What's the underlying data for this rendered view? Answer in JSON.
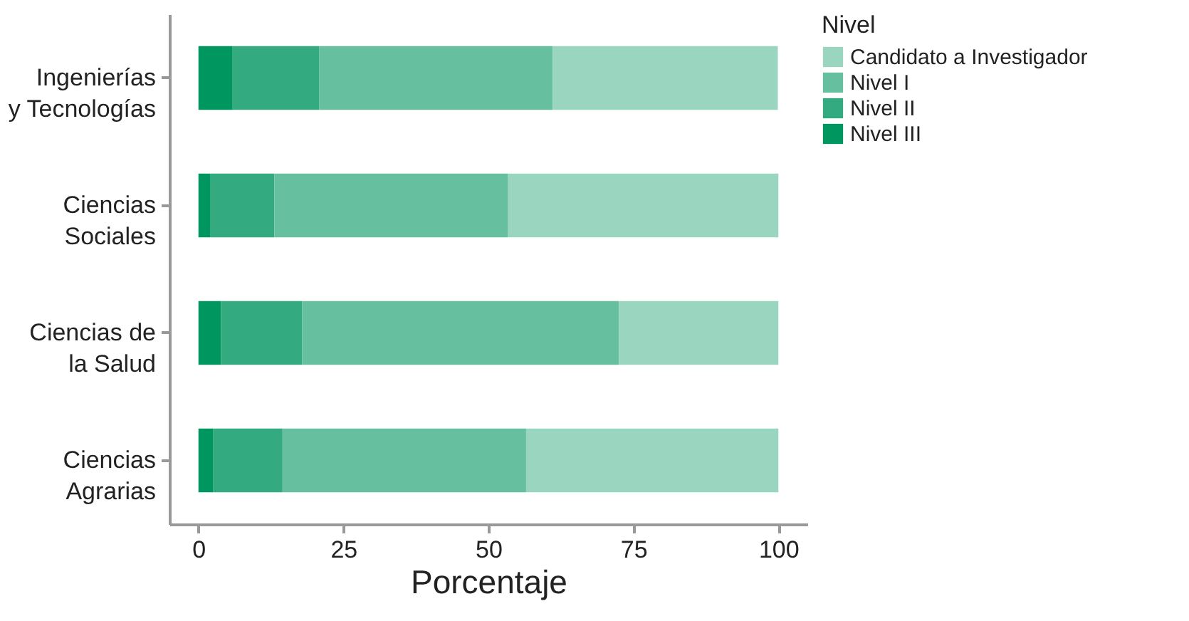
{
  "chart_data": {
    "type": "bar",
    "orientation": "horizontal",
    "stacked": true,
    "categories": [
      "Ingenierías\ny Tecnologías",
      "Ciencias\nSociales",
      "Ciencias de\nla Salud",
      "Ciencias\nAgrarias"
    ],
    "series": [
      {
        "name": "Nivel III",
        "color": "#009660",
        "values": [
          5.9,
          2.0,
          3.9,
          2.5
        ]
      },
      {
        "name": "Nivel II",
        "color": "#33aa7f",
        "values": [
          14.9,
          11.1,
          14.0,
          12.0
        ]
      },
      {
        "name": "Nivel I",
        "color": "#66bf9f",
        "values": [
          40.3,
          40.3,
          54.6,
          42.0
        ]
      },
      {
        "name": "Candidato a Investigador",
        "color": "#99d5bf",
        "values": [
          38.8,
          46.6,
          27.5,
          43.5
        ]
      }
    ],
    "xlabel": "Porcentaje",
    "legend_title": "Nivel",
    "legend": "right",
    "xlim": [
      -5,
      105
    ],
    "xticks": [
      0,
      25,
      50,
      75,
      100
    ],
    "grid": false
  }
}
